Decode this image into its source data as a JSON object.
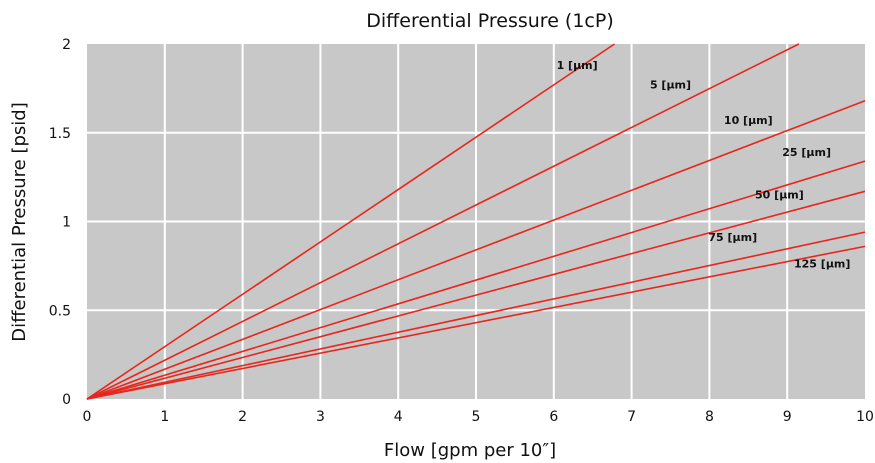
{
  "chart_data": {
    "type": "line",
    "title": "Differential Pressure (1cP)",
    "xlabel": "Flow [gpm per 10″]",
    "ylabel": "Differential Pressure [psid]",
    "xlim": [
      0,
      10
    ],
    "ylim": [
      0,
      2
    ],
    "x_ticks": [
      "0",
      "1",
      "2",
      "3",
      "4",
      "5",
      "6",
      "7",
      "8",
      "9",
      "10"
    ],
    "y_ticks": [
      "0",
      "0.5",
      "1",
      "1.5",
      "2"
    ],
    "grid": true,
    "line_color": "#e8261c",
    "plot_background": "#c8c8c8",
    "grid_color": "#ffffff",
    "series": [
      {
        "name": "1 [µm]",
        "x": [
          0,
          6.78
        ],
        "y": [
          0,
          2.0
        ],
        "label_at": [
          6.3,
          1.86
        ]
      },
      {
        "name": "5 [µm]",
        "x": [
          0,
          9.15
        ],
        "y": [
          0,
          2.0
        ],
        "label_at": [
          7.5,
          1.75
        ]
      },
      {
        "name": "10 [µm]",
        "x": [
          0,
          10
        ],
        "y": [
          0,
          1.68
        ],
        "label_at": [
          8.5,
          1.55
        ]
      },
      {
        "name": "25 [µm]",
        "x": [
          0,
          10
        ],
        "y": [
          0,
          1.34
        ],
        "label_at": [
          9.25,
          1.37
        ]
      },
      {
        "name": "50 [µm]",
        "x": [
          0,
          10
        ],
        "y": [
          0,
          1.17
        ],
        "label_at": [
          8.9,
          1.13
        ]
      },
      {
        "name": "75 [µm]",
        "x": [
          0,
          10
        ],
        "y": [
          0,
          0.94
        ],
        "label_at": [
          8.3,
          0.89
        ]
      },
      {
        "name": "125 [µm]",
        "x": [
          0,
          10
        ],
        "y": [
          0,
          0.86
        ],
        "label_at": [
          9.45,
          0.74
        ]
      }
    ]
  }
}
